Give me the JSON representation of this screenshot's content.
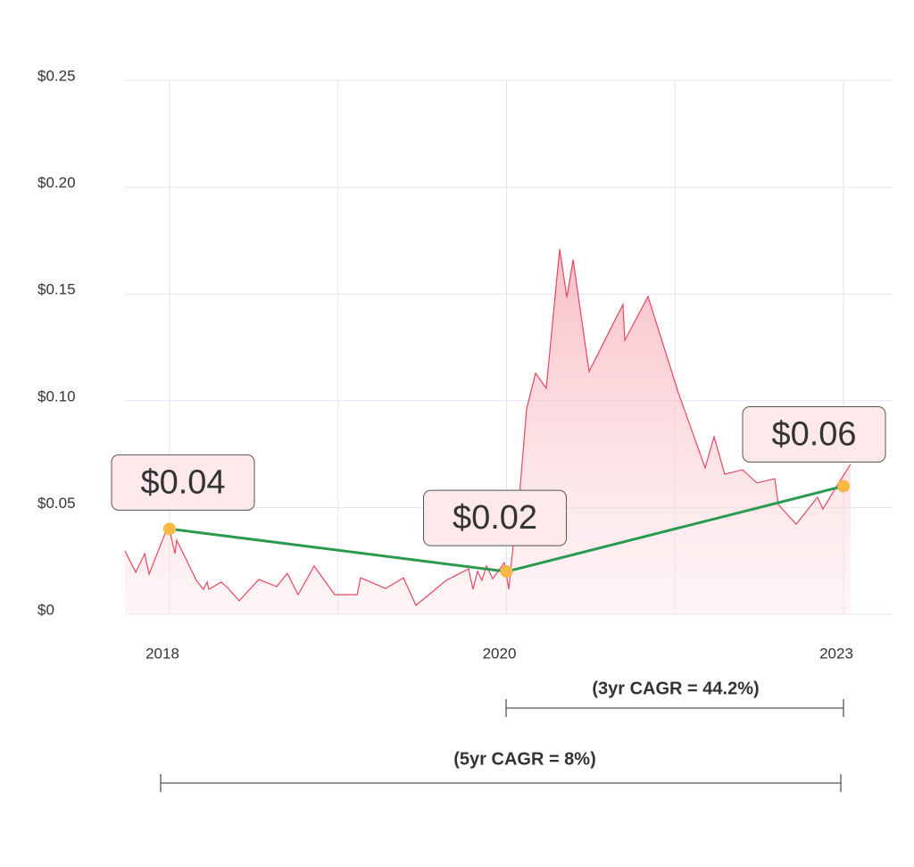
{
  "chart_data": {
    "type": "line",
    "categories": [
      "2018",
      null,
      "2020",
      null,
      "2023"
    ],
    "ylim": [
      0,
      0.25
    ],
    "yticks": [
      {
        "value": 0,
        "label": "$0"
      },
      {
        "value": 0.05,
        "label": "$0.05"
      },
      {
        "value": 0.1,
        "label": "$0.10"
      },
      {
        "value": 0.15,
        "label": "$0.15"
      },
      {
        "value": 0.2,
        "label": "$0.20"
      },
      {
        "value": 0.25,
        "label": "$0.25"
      }
    ],
    "grid": true,
    "price": {
      "color": "#e8455c",
      "x": [
        -0.265,
        -0.201,
        -0.148,
        -0.122,
        -0.026,
        0,
        0.032,
        0.042,
        0.095,
        0.159,
        0.201,
        0.223,
        0.233,
        0.307,
        0.344,
        0.413,
        0.53,
        0.636,
        0.699,
        0.763,
        0.858,
        0.98,
        1.113,
        1.134,
        1.282,
        1.388,
        1.462,
        1.642,
        1.775,
        1.801,
        1.828,
        1.854,
        1.881,
        1.918,
        1.987,
        2.013,
        2.045,
        2.077,
        2.119,
        2.172,
        2.236,
        2.315,
        2.358,
        2.395,
        2.49,
        2.691,
        2.702,
        2.84,
        3.02,
        3.179,
        3.232,
        3.295,
        3.401,
        3.486,
        3.592,
        3.613,
        3.719,
        3.846,
        3.878,
        3.974,
        4.042
      ],
      "values": [
        0.0297,
        0.0197,
        0.0284,
        0.0188,
        0.038,
        0.0397,
        0.0284,
        0.0347,
        0.0263,
        0.0159,
        0.0117,
        0.0151,
        0.0117,
        0.0151,
        0.0125,
        0.0063,
        0.0163,
        0.013,
        0.0192,
        0.0092,
        0.0226,
        0.0092,
        0.0092,
        0.0171,
        0.0121,
        0.0171,
        0.0042,
        0.0159,
        0.0213,
        0.0117,
        0.0201,
        0.0159,
        0.0226,
        0.0167,
        0.0242,
        0.0117,
        0.0368,
        0.0556,
        0.0962,
        0.1129,
        0.1058,
        0.171,
        0.1484,
        0.166,
        0.1137,
        0.1451,
        0.1283,
        0.1488,
        0.1037,
        0.0686,
        0.0832,
        0.0656,
        0.0677,
        0.0615,
        0.0635,
        0.0514,
        0.0422,
        0.0548,
        0.0493,
        0.0619,
        0.0702
      ]
    },
    "trend": {
      "color": "#2a9a4f",
      "marker_color": "#fbb844",
      "values": [
        0.04,
        null,
        0.02,
        null,
        0.06
      ],
      "value_labels": [
        "$0.04",
        null,
        "$0.02",
        null,
        "$0.06"
      ]
    },
    "annotations": [
      "(3yr CAGR = 44.2%)",
      "(5yr CAGR = 8%)"
    ]
  }
}
